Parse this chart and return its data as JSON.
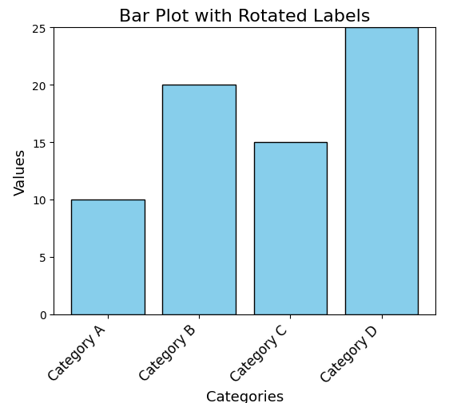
{
  "categories": [
    "Category A",
    "Category B",
    "Category C",
    "Category D"
  ],
  "values": [
    10,
    20,
    15,
    25
  ],
  "bar_color": "#87CEEB",
  "bar_edgecolor": "black",
  "title": "Bar Plot with Rotated Labels",
  "xlabel": "Categories",
  "ylabel": "Values",
  "ylim": [
    0,
    25
  ],
  "title_fontsize": 16,
  "label_fontsize": 13,
  "tick_fontsize": 12,
  "label_rotation": 45,
  "label_ha": "right",
  "bar_width": 0.8
}
